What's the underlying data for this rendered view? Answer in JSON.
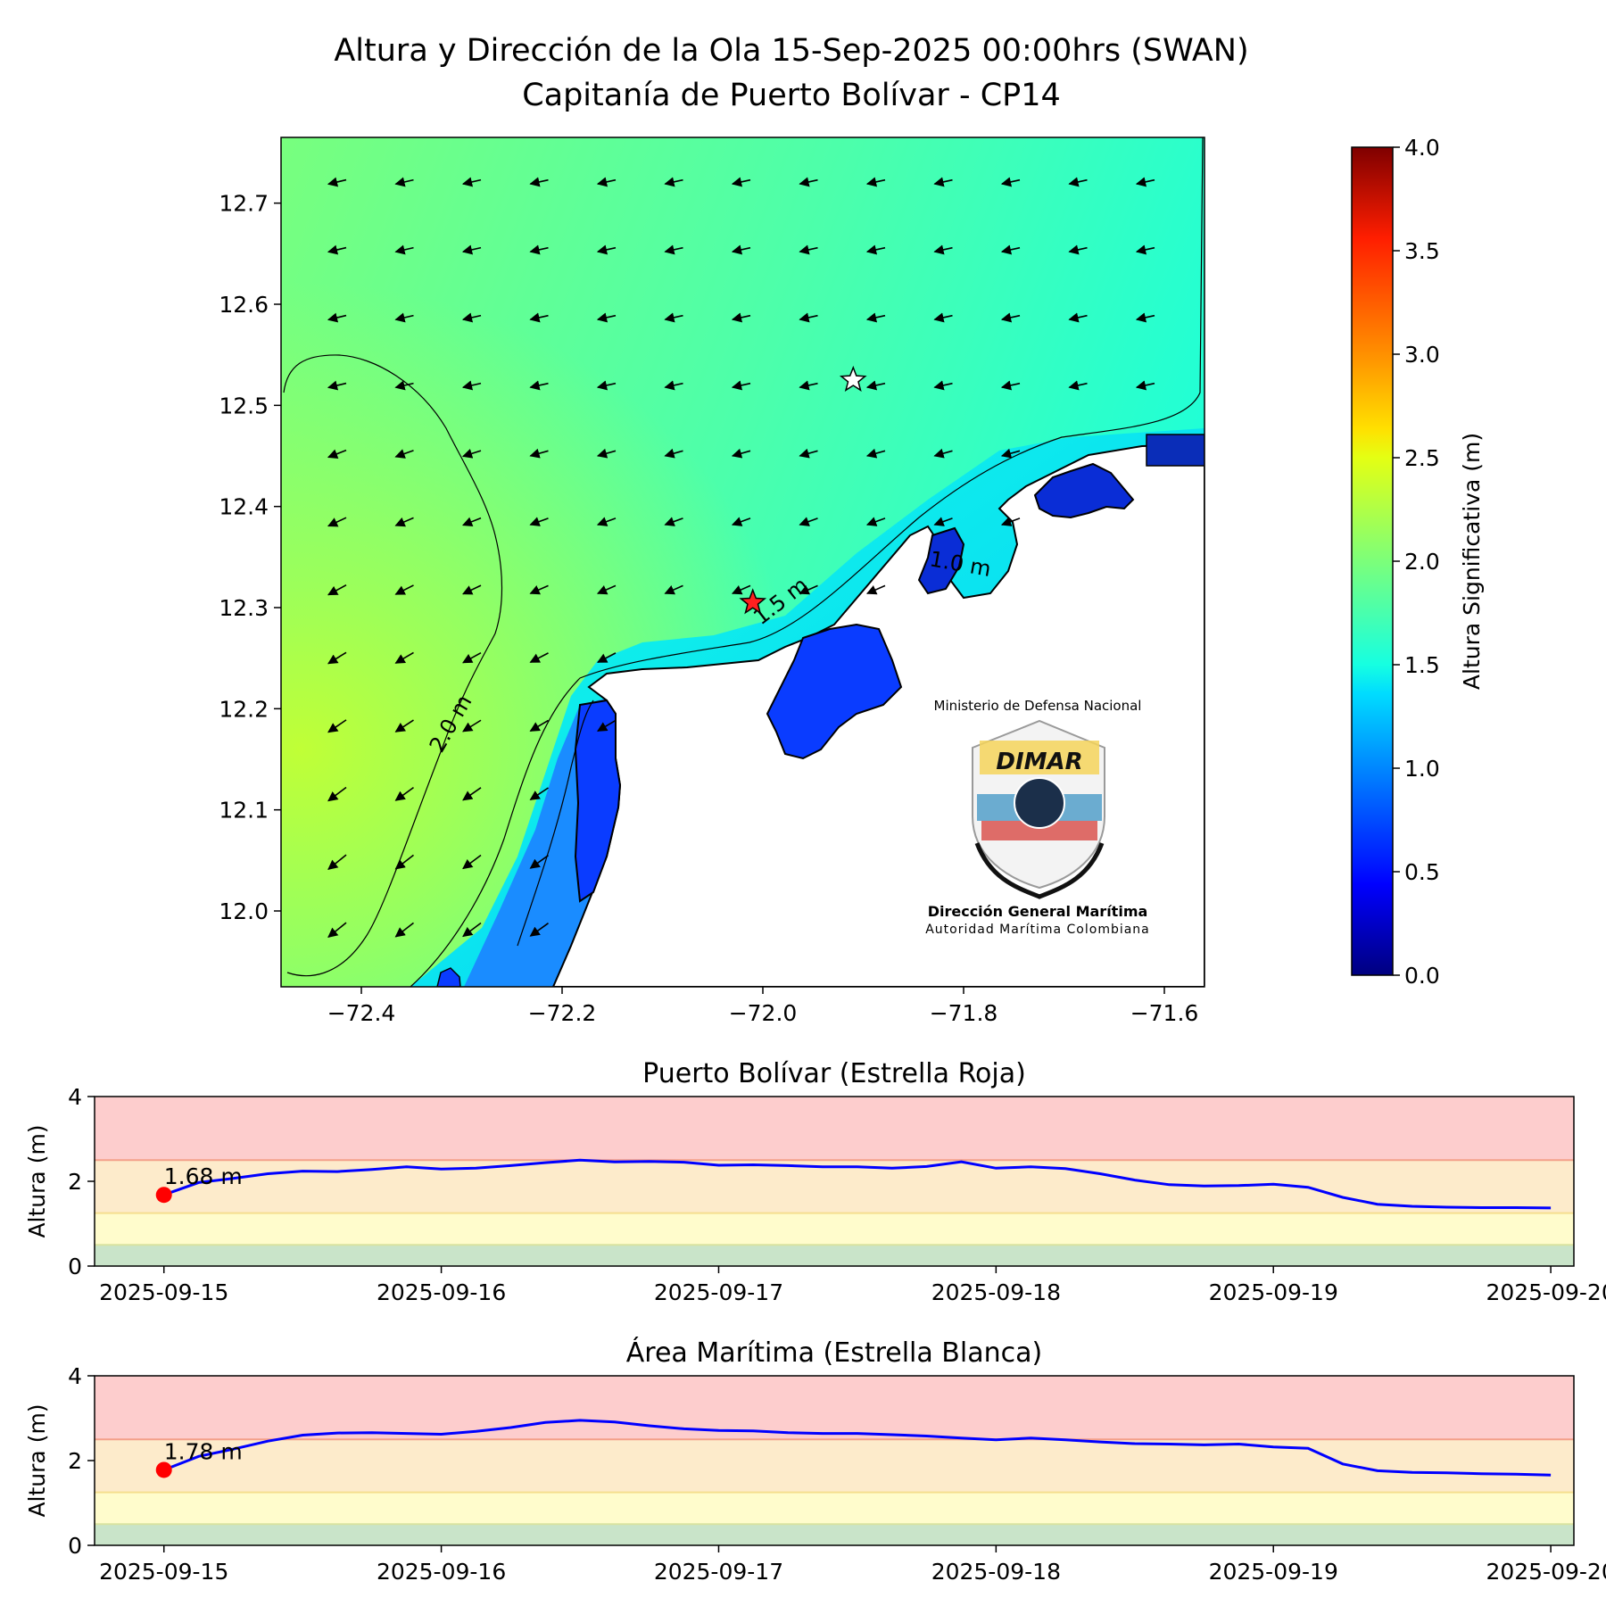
{
  "title": {
    "line1": "Altura y Dirección de la Ola 15-Sep-2025 00:00hrs (SWAN)",
    "line2": "Capitanía de Puerto Bolívar - CP14"
  },
  "logo": {
    "ministry": "Ministerio de Defensa Nacional",
    "brand": "DIMAR",
    "org": "Dirección General Marítima",
    "subtitle": "Autoridad Marítima Colombiana"
  },
  "chart_data": [
    {
      "type": "heatmap",
      "name": "map",
      "xticks": [
        "−72.4",
        "−72.2",
        "−72.0",
        "−71.8",
        "−71.6"
      ],
      "xtick_values": [
        -72.4,
        -72.2,
        -72.0,
        -71.8,
        -71.6
      ],
      "yticks": [
        "12.0",
        "12.1",
        "12.2",
        "12.3",
        "12.4",
        "12.5",
        "12.6",
        "12.7"
      ],
      "ytick_values": [
        12.0,
        12.1,
        12.2,
        12.3,
        12.4,
        12.5,
        12.6,
        12.7
      ],
      "xlim": [
        -72.48,
        -71.56
      ],
      "ylim": [
        11.925,
        12.765
      ],
      "contour_labels": [
        "2.0 m",
        "1.5 m",
        "1.0 m"
      ],
      "markers": [
        {
          "kind": "red-star",
          "lon": -72.01,
          "lat": 12.305,
          "color": "#ff2020"
        },
        {
          "kind": "white-star",
          "lon": -71.91,
          "lat": 12.525,
          "color": "#ffffff"
        }
      ],
      "wave_direction": "from east-northeast toward west-southwest"
    },
    {
      "type": "colorbar",
      "label": "Altura Significativa (m)",
      "ticks": [
        "0.0",
        "0.5",
        "1.0",
        "1.5",
        "2.0",
        "2.5",
        "3.0",
        "3.5",
        "4.0"
      ],
      "range": [
        0,
        4
      ],
      "colormap": "jet"
    },
    {
      "type": "line",
      "title": "Puerto Bolívar (Estrella Roja)",
      "ylabel": "Altura (m)",
      "ylim": [
        0,
        4
      ],
      "yticks": [
        "0",
        "2",
        "4"
      ],
      "xlim": [
        "2025-09-14T18:00",
        "2025-09-20T02:00"
      ],
      "xticks": [
        "2025-09-15",
        "2025-09-16",
        "2025-09-17",
        "2025-09-18",
        "2025-09-19",
        "2025-09-20"
      ],
      "bands": [
        {
          "from": 0,
          "to": 0.5,
          "color": "#c9e4c9"
        },
        {
          "from": 0.5,
          "to": 1.25,
          "color": "#fffccc"
        },
        {
          "from": 1.25,
          "to": 2.5,
          "color": "#fdebcb"
        },
        {
          "from": 2.5,
          "to": 4,
          "color": "#fdcdcd"
        }
      ],
      "series_color": "#0000ff",
      "x": [
        "2025-09-15T00:00",
        "2025-09-15T03:00",
        "2025-09-15T06:00",
        "2025-09-15T09:00",
        "2025-09-15T12:00",
        "2025-09-15T15:00",
        "2025-09-15T18:00",
        "2025-09-15T21:00",
        "2025-09-16T00:00",
        "2025-09-16T03:00",
        "2025-09-16T06:00",
        "2025-09-16T09:00",
        "2025-09-16T12:00",
        "2025-09-16T15:00",
        "2025-09-16T18:00",
        "2025-09-16T21:00",
        "2025-09-17T00:00",
        "2025-09-17T03:00",
        "2025-09-17T06:00",
        "2025-09-17T09:00",
        "2025-09-17T12:00",
        "2025-09-17T15:00",
        "2025-09-17T18:00",
        "2025-09-17T21:00",
        "2025-09-18T00:00",
        "2025-09-18T03:00",
        "2025-09-18T06:00",
        "2025-09-18T09:00",
        "2025-09-18T12:00",
        "2025-09-18T15:00",
        "2025-09-18T18:00",
        "2025-09-18T21:00",
        "2025-09-19T00:00",
        "2025-09-19T03:00",
        "2025-09-19T06:00",
        "2025-09-19T09:00",
        "2025-09-19T12:00",
        "2025-09-19T15:00",
        "2025-09-19T18:00",
        "2025-09-19T21:00",
        "2025-09-20T00:00"
      ],
      "values": [
        1.68,
        1.97,
        2.07,
        2.18,
        2.24,
        2.23,
        2.28,
        2.34,
        2.29,
        2.31,
        2.37,
        2.44,
        2.5,
        2.46,
        2.47,
        2.45,
        2.38,
        2.39,
        2.37,
        2.34,
        2.34,
        2.31,
        2.35,
        2.46,
        2.31,
        2.34,
        2.3,
        2.18,
        2.03,
        1.92,
        1.89,
        1.9,
        1.93,
        1.86,
        1.62,
        1.46,
        1.41,
        1.39,
        1.38,
        1.38,
        1.37
      ],
      "current": {
        "x": "2025-09-15T00:00",
        "value": 1.68,
        "label": "1.68 m",
        "color": "#ff0000"
      }
    },
    {
      "type": "line",
      "title": "Área Marítima (Estrella Blanca)",
      "ylabel": "Altura (m)",
      "ylim": [
        0,
        4
      ],
      "yticks": [
        "0",
        "2",
        "4"
      ],
      "xlim": [
        "2025-09-14T18:00",
        "2025-09-20T02:00"
      ],
      "xticks": [
        "2025-09-15",
        "2025-09-16",
        "2025-09-17",
        "2025-09-18",
        "2025-09-19",
        "2025-09-20"
      ],
      "bands": [
        {
          "from": 0,
          "to": 0.5,
          "color": "#c9e4c9"
        },
        {
          "from": 0.5,
          "to": 1.25,
          "color": "#fffccc"
        },
        {
          "from": 1.25,
          "to": 2.5,
          "color": "#fdebcb"
        },
        {
          "from": 2.5,
          "to": 4,
          "color": "#fdcdcd"
        }
      ],
      "series_color": "#0000ff",
      "x": [
        "2025-09-15T00:00",
        "2025-09-15T03:00",
        "2025-09-15T06:00",
        "2025-09-15T09:00",
        "2025-09-15T12:00",
        "2025-09-15T15:00",
        "2025-09-15T18:00",
        "2025-09-15T21:00",
        "2025-09-16T00:00",
        "2025-09-16T03:00",
        "2025-09-16T06:00",
        "2025-09-16T09:00",
        "2025-09-16T12:00",
        "2025-09-16T15:00",
        "2025-09-16T18:00",
        "2025-09-16T21:00",
        "2025-09-17T00:00",
        "2025-09-17T03:00",
        "2025-09-17T06:00",
        "2025-09-17T09:00",
        "2025-09-17T12:00",
        "2025-09-17T15:00",
        "2025-09-17T18:00",
        "2025-09-17T21:00",
        "2025-09-18T00:00",
        "2025-09-18T03:00",
        "2025-09-18T06:00",
        "2025-09-18T09:00",
        "2025-09-18T12:00",
        "2025-09-18T15:00",
        "2025-09-18T18:00",
        "2025-09-18T21:00",
        "2025-09-19T00:00",
        "2025-09-19T03:00",
        "2025-09-19T06:00",
        "2025-09-19T09:00",
        "2025-09-19T12:00",
        "2025-09-19T15:00",
        "2025-09-19T18:00",
        "2025-09-19T21:00",
        "2025-09-20T00:00"
      ],
      "values": [
        1.78,
        2.1,
        2.27,
        2.46,
        2.6,
        2.65,
        2.66,
        2.64,
        2.62,
        2.69,
        2.78,
        2.9,
        2.95,
        2.91,
        2.82,
        2.75,
        2.71,
        2.7,
        2.66,
        2.64,
        2.64,
        2.61,
        2.58,
        2.53,
        2.49,
        2.53,
        2.49,
        2.44,
        2.4,
        2.39,
        2.37,
        2.39,
        2.32,
        2.29,
        1.92,
        1.76,
        1.72,
        1.71,
        1.69,
        1.68,
        1.66
      ],
      "current": {
        "x": "2025-09-15T00:00",
        "value": 1.78,
        "label": "1.78 m",
        "color": "#ff0000"
      }
    }
  ]
}
